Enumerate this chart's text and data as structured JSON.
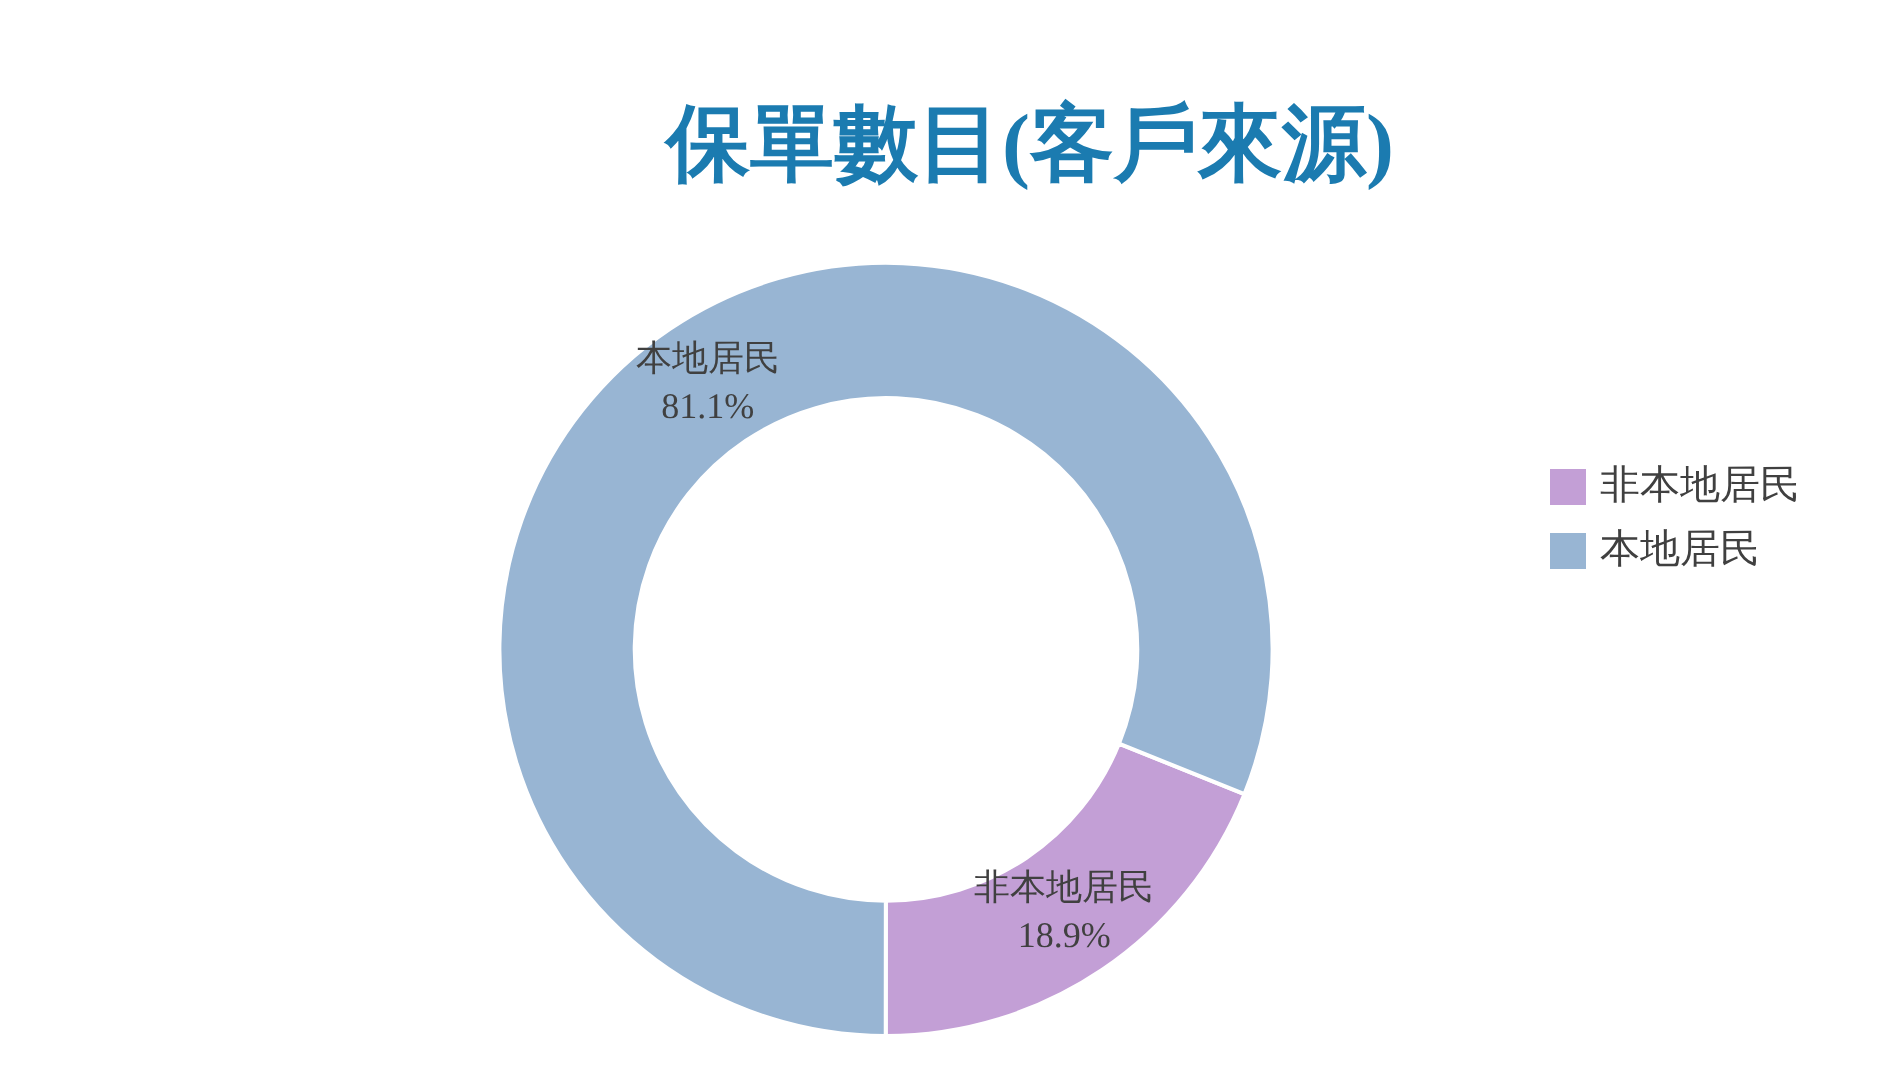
{
  "chart_data": {
    "type": "donut",
    "title": "保單數目(客戶來源)",
    "categories": [
      "非本地居民",
      "本地居民"
    ],
    "values": [
      18.9,
      81.1
    ],
    "colors": [
      "#c39fd6",
      "#98b5d3"
    ],
    "value_labels": [
      "18.9%",
      "81.1%"
    ],
    "legend": "right"
  }
}
